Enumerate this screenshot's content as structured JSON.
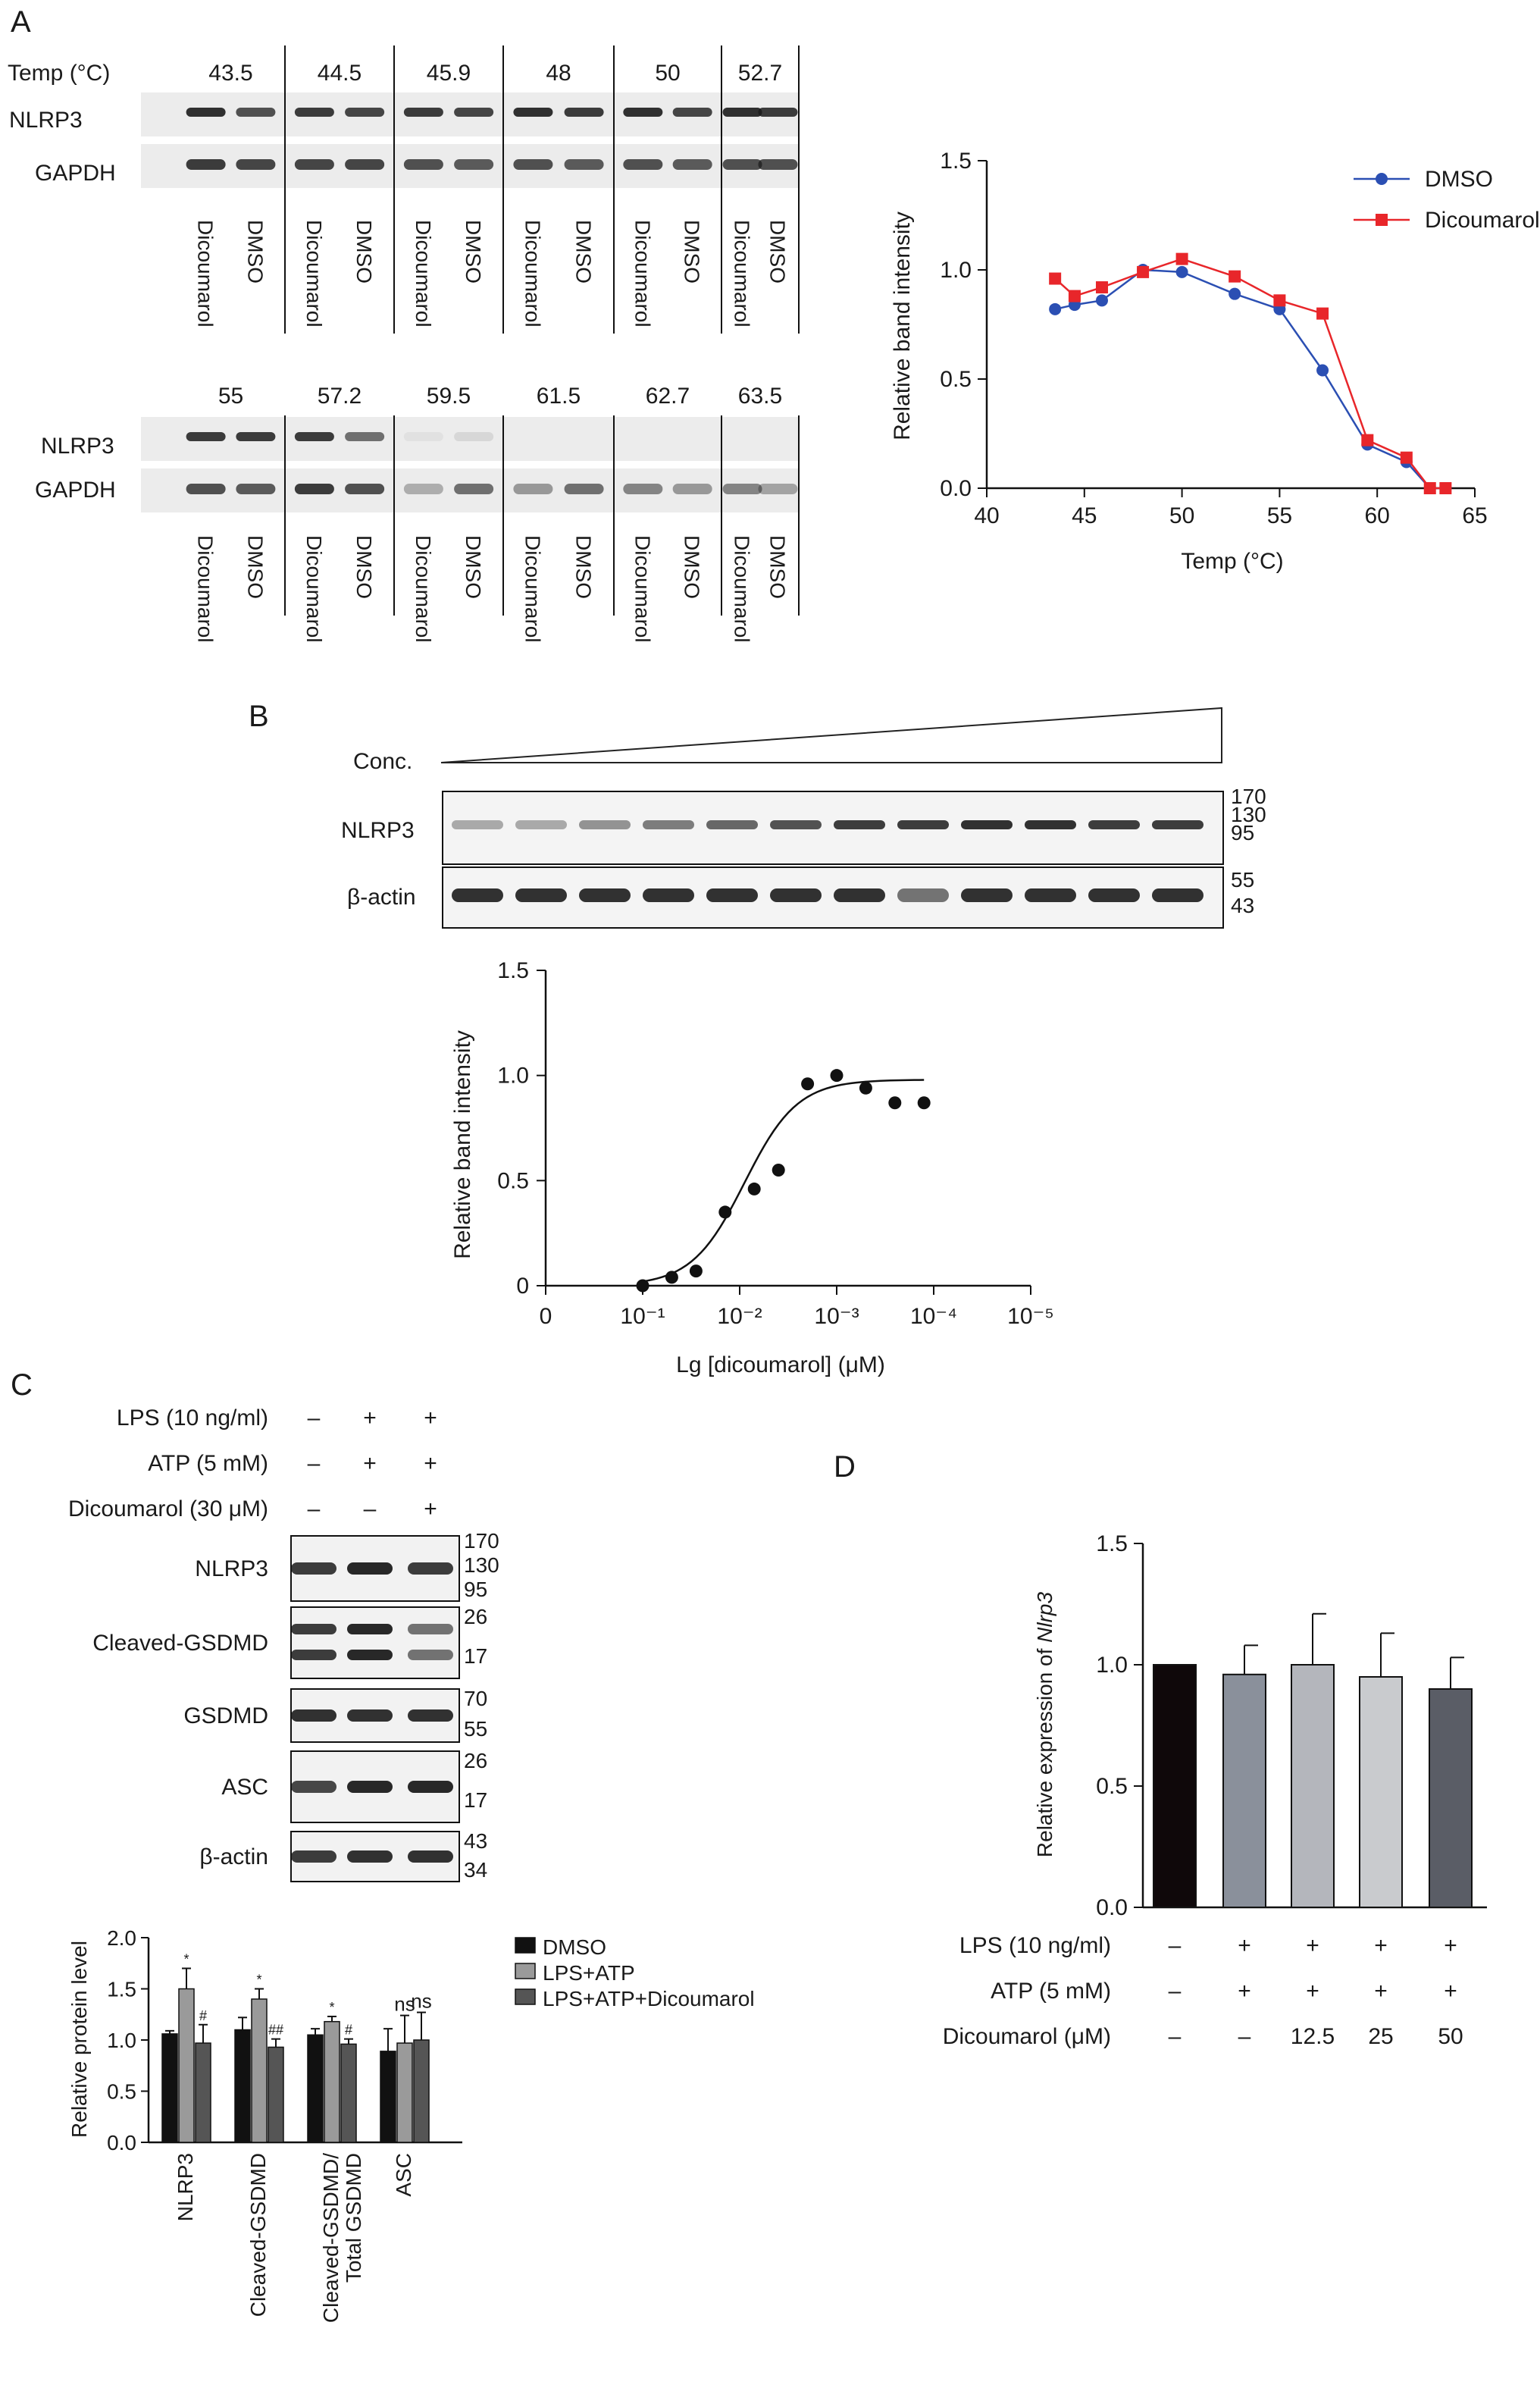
{
  "panels": {
    "A": "A",
    "B": "B",
    "C": "C",
    "D": "D"
  },
  "blotA": {
    "temp_label": "Temp (°C)",
    "row1_temps": [
      "43.5",
      "44.5",
      "45.9",
      "48",
      "50",
      "52.7"
    ],
    "row2_temps": [
      "55",
      "57.2",
      "59.5",
      "61.5",
      "62.7",
      "63.5"
    ],
    "band1": "NLRP3",
    "band2": "GAPDH",
    "lane1": "Dicoumarol",
    "lane2": "DMSO"
  },
  "blotB": {
    "conc_label": "Conc.",
    "band1": "NLRP3",
    "band2": "β-actin",
    "mw1": [
      "170",
      "130",
      "95"
    ],
    "mw2": [
      "55",
      "43"
    ],
    "lanes": 12
  },
  "blotC": {
    "cond_rows": [
      {
        "label": "LPS (10 ng/ml)",
        "marks": [
          "–",
          "+",
          "+"
        ]
      },
      {
        "label": "ATP (5 mM)",
        "marks": [
          "–",
          "+",
          "+"
        ]
      },
      {
        "label": "Dicoumarol (30 μM)",
        "marks": [
          "–",
          "–",
          "+"
        ]
      }
    ],
    "bands": [
      {
        "label": "NLRP3",
        "mw": [
          "170",
          "130",
          "95"
        ]
      },
      {
        "label": "Cleaved-GSDMD",
        "mw": [
          "26",
          "17"
        ]
      },
      {
        "label": "GSDMD",
        "mw": [
          "70",
          "55"
        ]
      },
      {
        "label": "ASC",
        "mw": [
          "26",
          "17"
        ]
      },
      {
        "label": "β-actin",
        "mw": [
          "43",
          "34"
        ]
      }
    ]
  },
  "chart_data": [
    {
      "id": "A",
      "type": "line",
      "xlabel": "Temp (°C)",
      "ylabel": "Relative band intensity",
      "xlim": [
        40,
        65
      ],
      "ylim": [
        0,
        1.5
      ],
      "xticks": [
        "40",
        "45",
        "50",
        "55",
        "60",
        "65"
      ],
      "yticks": [
        "0.0",
        "0.5",
        "1.0",
        "1.5"
      ],
      "legend": "top-right",
      "x": [
        43.5,
        44.5,
        45.9,
        48,
        50,
        52.7,
        55,
        57.2,
        59.5,
        61.5,
        62.7,
        63.5
      ],
      "series": [
        {
          "name": "DMSO",
          "color": "#2b4fb3",
          "marker": "circle",
          "values": [
            0.82,
            0.84,
            0.86,
            1.0,
            0.99,
            0.89,
            0.82,
            0.54,
            0.2,
            0.12,
            0.0,
            0.0
          ]
        },
        {
          "name": "Dicoumarol",
          "color": "#e8262a",
          "marker": "square",
          "values": [
            0.96,
            0.88,
            0.92,
            0.99,
            1.05,
            0.97,
            0.86,
            0.8,
            0.22,
            0.14,
            0.0,
            0.0
          ]
        }
      ]
    },
    {
      "id": "B",
      "type": "scatter",
      "xlabel": "Lg [dicoumarol] (μM)",
      "ylabel": "Relative band intensity",
      "ylim": [
        0,
        1.5
      ],
      "xticks": [
        "0",
        "10⁻¹",
        "10⁻²",
        "10⁻³",
        "10⁻⁴",
        "10⁻⁵"
      ],
      "yticks": [
        "0",
        "0.5",
        "1.0",
        "1.5"
      ],
      "x_log_neg": [
        1.0,
        1.3,
        1.55,
        1.85,
        2.15,
        2.4,
        2.7,
        3.0,
        3.3,
        3.6,
        3.9
      ],
      "values": [
        0.0,
        0.04,
        0.07,
        0.35,
        0.46,
        0.55,
        0.96,
        1.0,
        0.94,
        0.87,
        0.87
      ],
      "fit": {
        "bottom": 0.0,
        "top": 0.98,
        "center": 2.05,
        "slope": 1.6
      }
    },
    {
      "id": "C",
      "type": "bar",
      "ylabel": "Relative protein level",
      "ylim": [
        0,
        2.0
      ],
      "yticks": [
        "0.0",
        "0.5",
        "1.0",
        "1.5",
        "2.0"
      ],
      "categories": [
        "NLRP3",
        "Cleaved-GSDMD",
        "Cleaved-GSDMD/\nTotal GSDMD",
        "ASC"
      ],
      "legend": "right",
      "series": [
        {
          "name": "DMSO",
          "color": "#111111",
          "values": [
            1.06,
            1.1,
            1.05,
            0.89
          ],
          "errors": [
            0.03,
            0.12,
            0.06,
            0.22
          ]
        },
        {
          "name": "LPS+ATP",
          "color": "#9a9a9a",
          "values": [
            1.5,
            1.4,
            1.18,
            0.97
          ],
          "errors": [
            0.2,
            0.1,
            0.05,
            0.27
          ]
        },
        {
          "name": "LPS+ATP+Dicoumarol",
          "color": "#555555",
          "values": [
            0.97,
            0.93,
            0.96,
            1.0
          ],
          "errors": [
            0.18,
            0.08,
            0.05,
            0.27
          ]
        }
      ],
      "annotations": [
        [
          "",
          "*",
          "#"
        ],
        [
          "",
          "*",
          "##"
        ],
        [
          "",
          "*",
          "#"
        ],
        [
          "",
          "ns",
          "ns"
        ]
      ]
    },
    {
      "id": "D",
      "type": "bar",
      "ylabel_prefix": "Relative expression of ",
      "ylabel_gene": "Nlrp3",
      "ylim": [
        0,
        1.5
      ],
      "yticks": [
        "0.0",
        "0.5",
        "1.0",
        "1.5"
      ],
      "values": [
        1.0,
        0.96,
        1.0,
        0.95,
        0.9
      ],
      "errors": [
        0.0,
        0.12,
        0.21,
        0.18,
        0.13
      ],
      "colors": [
        "#0f080a",
        "#8a909b",
        "#b4b6bc",
        "#c9cbce",
        "#5a5d66"
      ],
      "conditions": [
        {
          "label": "LPS (10 ng/ml)",
          "marks": [
            "–",
            "+",
            "+",
            "+",
            "+"
          ]
        },
        {
          "label": "ATP (5 mM)",
          "marks": [
            "–",
            "+",
            "+",
            "+",
            "+"
          ]
        },
        {
          "label": "Dicoumarol (μM)",
          "marks": [
            "–",
            "–",
            "12.5",
            "25",
            "50"
          ]
        }
      ]
    }
  ]
}
